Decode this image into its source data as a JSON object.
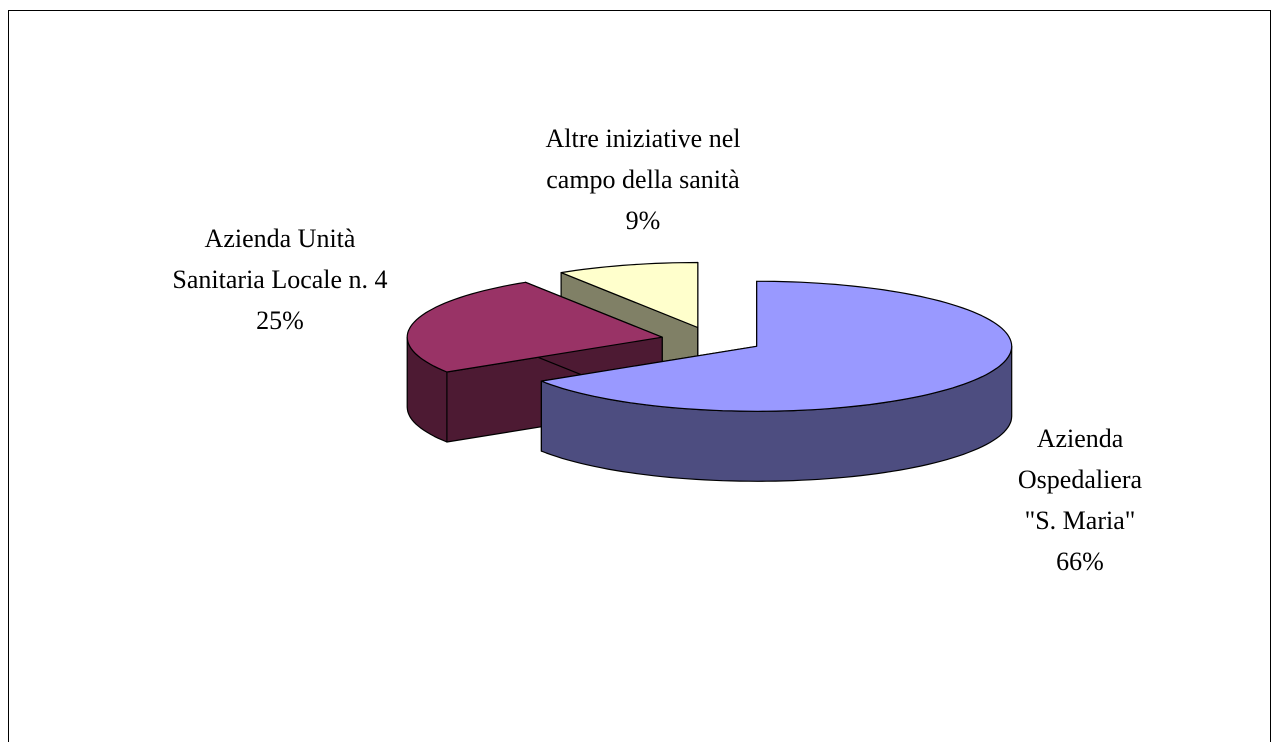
{
  "chart_data": {
    "type": "pie",
    "style": "3d-exploded",
    "categories": [
      "Azienda Ospedaliera \"S. Maria\"",
      "Azienda Unità Sanitaria Locale n. 4",
      "Altre iniziative nel campo della sanità"
    ],
    "values": [
      66,
      25,
      9
    ],
    "value_labels": [
      "66%",
      "25%",
      "9%"
    ],
    "colors": [
      "#9999ff",
      "#993366",
      "#ffffcc"
    ]
  }
}
